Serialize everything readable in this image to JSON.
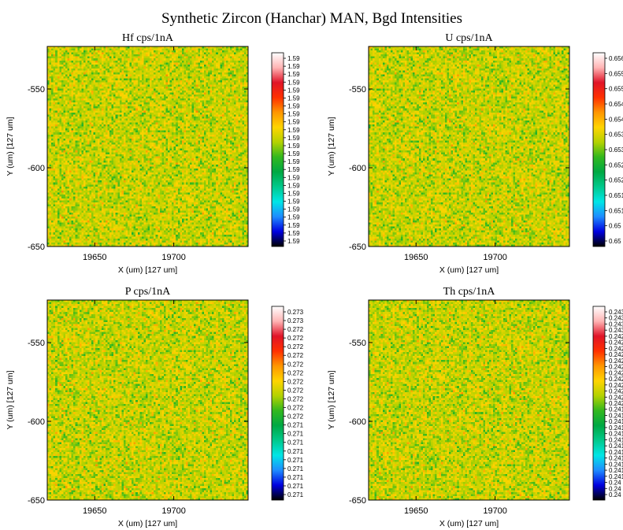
{
  "figure": {
    "title": "Synthetic Zircon (Hanchar) MAN, Bgd Intensities"
  },
  "colorscale": [
    "#000000",
    "#0000e0",
    "#1e8cff",
    "#00e6e6",
    "#00c98c",
    "#00a844",
    "#32b81e",
    "#b4d200",
    "#ffd400",
    "#ff9600",
    "#ff3000",
    "#e01428",
    "#ffb4b4",
    "#ffffff"
  ],
  "chart_data": [
    {
      "type": "heatmap",
      "title": "Hf cps/1nA",
      "xlabel": "X (um)   [127 um]",
      "ylabel": "Y (um)   [127 um]",
      "xlim": [
        19620,
        19747
      ],
      "ylim": [
        -650,
        -523
      ],
      "x_ticks": [
        19650,
        19700
      ],
      "y_ticks": [
        -550,
        -600,
        -650
      ],
      "colorbar_ticks": [
        "1.59",
        "1.59",
        "1.59",
        "1.59",
        "1.59",
        "1.59",
        "1.59",
        "1.59",
        "1.59",
        "1.59",
        "1.59",
        "1.59",
        "1.59",
        "1.59",
        "1.59",
        "1.59",
        "1.59",
        "1.59",
        "1.59",
        "1.59",
        "1.59",
        "1.59",
        "1.59",
        "1.59"
      ],
      "value_range": [
        1.59,
        1.59
      ],
      "grid_cells": [
        100,
        100
      ],
      "distribution": "random noise, mostly green/yellow"
    },
    {
      "type": "heatmap",
      "title": "U cps/1nA",
      "xlabel": "X (um)   [127 um]",
      "ylabel": "Y (um)   [127 um]",
      "xlim": [
        19620,
        19747
      ],
      "ylim": [
        -650,
        -523
      ],
      "x_ticks": [
        19650,
        19700
      ],
      "y_ticks": [
        -550,
        -600,
        -650
      ],
      "colorbar_ticks": [
        "0.656",
        "0.655",
        "0.655",
        "0.654",
        "0.654",
        "0.653",
        "0.653",
        "0.652",
        "0.652",
        "0.651",
        "0.651",
        "0.65",
        "0.65"
      ],
      "value_range": [
        0.65,
        0.656
      ],
      "grid_cells": [
        100,
        100
      ],
      "distribution": "random noise, mostly green/yellow"
    },
    {
      "type": "heatmap",
      "title": "P cps/1nA",
      "xlabel": "X (um)   [127 um]",
      "ylabel": "Y (um)   [127 um]",
      "xlim": [
        19620,
        19747
      ],
      "ylim": [
        -650,
        -523
      ],
      "x_ticks": [
        19650,
        19700
      ],
      "y_ticks": [
        -550,
        -600,
        -650
      ],
      "colorbar_ticks": [
        "0.273",
        "0.273",
        "0.272",
        "0.272",
        "0.272",
        "0.272",
        "0.272",
        "0.272",
        "0.272",
        "0.272",
        "0.272",
        "0.272",
        "0.272",
        "0.271",
        "0.271",
        "0.271",
        "0.271",
        "0.271",
        "0.271",
        "0.271",
        "0.271",
        "0.271"
      ],
      "value_range": [
        0.271,
        0.273
      ],
      "grid_cells": [
        100,
        100
      ],
      "distribution": "random noise, mostly green/yellow"
    },
    {
      "type": "heatmap",
      "title": "Th cps/1nA",
      "xlabel": "X (um)   [127 um]",
      "ylabel": "Y (um)   [127 um]",
      "xlim": [
        19620,
        19747
      ],
      "ylim": [
        -650,
        -523
      ],
      "x_ticks": [
        19650,
        19700
      ],
      "y_ticks": [
        -550,
        -600,
        -650
      ],
      "colorbar_ticks": [
        "0.243",
        "0.243",
        "0.243",
        "0.243",
        "0.242",
        "0.242",
        "0.242",
        "0.242",
        "0.242",
        "0.242",
        "0.242",
        "0.242",
        "0.242",
        "0.242",
        "0.242",
        "0.242",
        "0.241",
        "0.241",
        "0.241",
        "0.241",
        "0.241",
        "0.241",
        "0.241",
        "0.241",
        "0.241",
        "0.241",
        "0.241",
        "0.241",
        "0.24",
        "0.24",
        "0.24"
      ],
      "value_range": [
        0.24,
        0.243
      ],
      "grid_cells": [
        100,
        100
      ],
      "distribution": "random noise, mostly green/yellow"
    }
  ]
}
